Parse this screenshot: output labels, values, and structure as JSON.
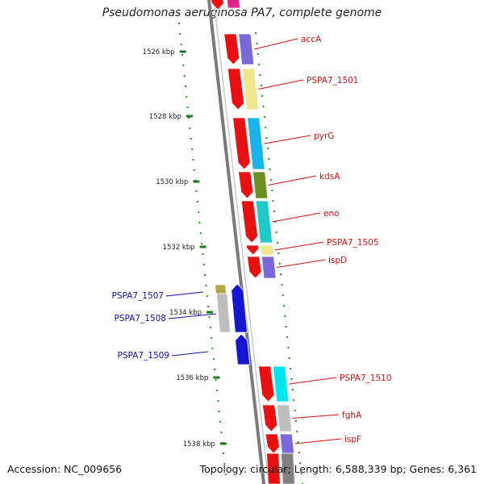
{
  "title": "Pseudomonas aeruginosa PA7, complete genome",
  "footer": {
    "accession": "Accession: NC_009656",
    "summary": "Topology: circular; Length: 6,588,339 bp; Genes: 6,361"
  },
  "colors": {
    "forward_gene": "#e81010",
    "reverse_gene": "#1515d0",
    "label_forward": "#d01010",
    "label_reverse": "#1010b0",
    "backbone": "#7a7a7a",
    "tick": "#1a7a1a"
  },
  "scale_ticks": [
    "1526 kbp",
    "1528 kbp",
    "1530 kbp",
    "1532 kbp",
    "1534 kbp",
    "1536 kbp",
    "1538 kbp"
  ],
  "forward_genes": [
    {
      "label": "accA",
      "cog_color": "#7b68d8"
    },
    {
      "label": "PSPA7_1501",
      "cog_color": "#f0e68c"
    },
    {
      "label": "pyrG",
      "cog_color": "#19b5e8"
    },
    {
      "label": "kdsA",
      "cog_color": "#6b8e23"
    },
    {
      "label": "eno",
      "cog_color": "#20c8c8"
    },
    {
      "label": "PSPA7_1505",
      "cog_color": "#f0e68c"
    },
    {
      "label": "ispD",
      "cog_color": "#7b68d8"
    },
    {
      "label": "PSPA7_1510",
      "cog_color": "#00e5ee"
    },
    {
      "label": "fghA",
      "cog_color": "#bebebe"
    },
    {
      "label": "ispF",
      "cog_color": "#7b68d8"
    }
  ],
  "reverse_genes": [
    {
      "label": "PSPA7_1507",
      "cog_color": "#b5a642"
    },
    {
      "label": "PSPA7_1508",
      "cog_color": "#bebebe"
    },
    {
      "label": "PSPA7_1509",
      "cog_color": ""
    }
  ]
}
